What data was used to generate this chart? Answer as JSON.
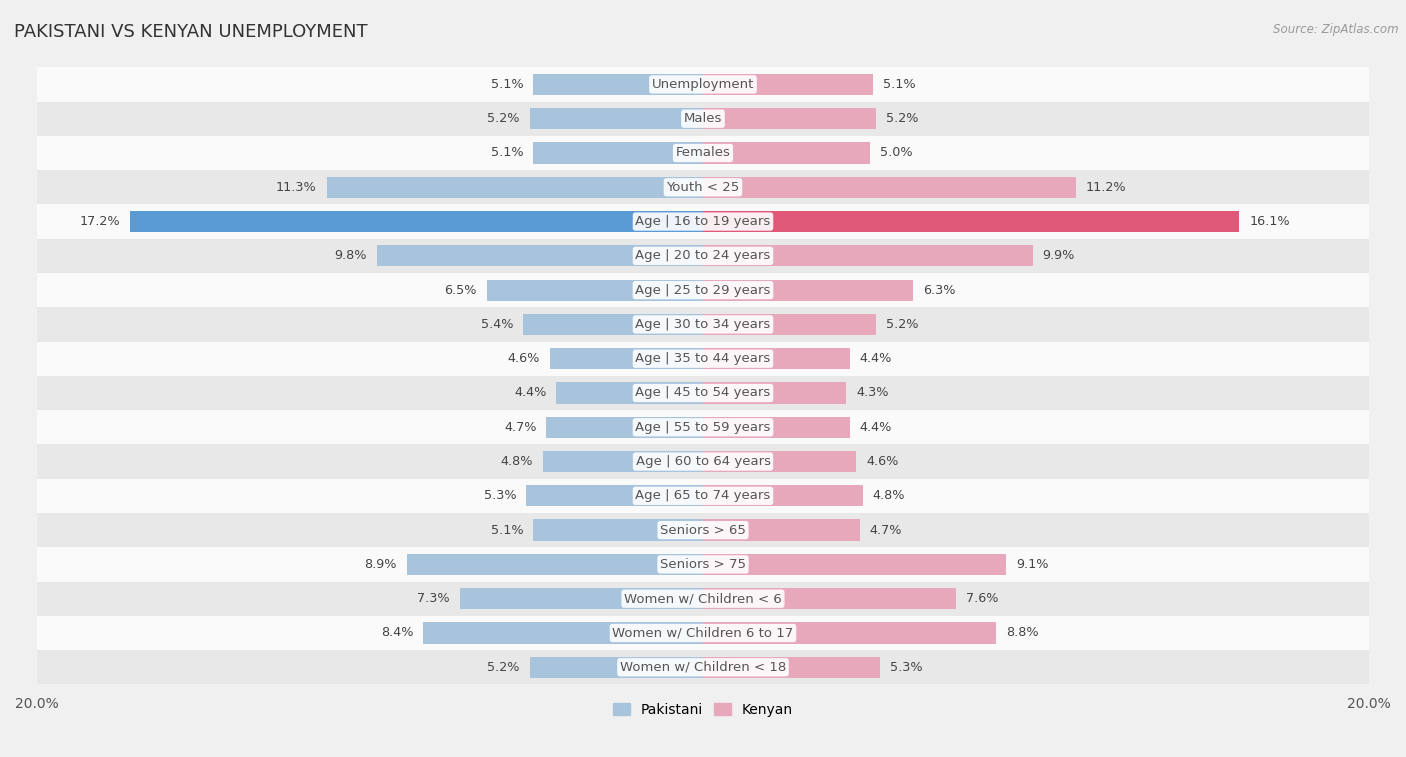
{
  "title": "PAKISTANI VS KENYAN UNEMPLOYMENT",
  "source": "Source: ZipAtlas.com",
  "categories": [
    "Unemployment",
    "Males",
    "Females",
    "Youth < 25",
    "Age | 16 to 19 years",
    "Age | 20 to 24 years",
    "Age | 25 to 29 years",
    "Age | 30 to 34 years",
    "Age | 35 to 44 years",
    "Age | 45 to 54 years",
    "Age | 55 to 59 years",
    "Age | 60 to 64 years",
    "Age | 65 to 74 years",
    "Seniors > 65",
    "Seniors > 75",
    "Women w/ Children < 6",
    "Women w/ Children 6 to 17",
    "Women w/ Children < 18"
  ],
  "pakistani": [
    5.1,
    5.2,
    5.1,
    11.3,
    17.2,
    9.8,
    6.5,
    5.4,
    4.6,
    4.4,
    4.7,
    4.8,
    5.3,
    5.1,
    8.9,
    7.3,
    8.4,
    5.2
  ],
  "kenyan": [
    5.1,
    5.2,
    5.0,
    11.2,
    16.1,
    9.9,
    6.3,
    5.2,
    4.4,
    4.3,
    4.4,
    4.6,
    4.8,
    4.7,
    9.1,
    7.6,
    8.8,
    5.3
  ],
  "pakistani_color": "#a8c4dd",
  "kenyan_color": "#e8a8bc",
  "pakistani_color_highlight": "#5b9bd5",
  "kenyan_color_highlight": "#e05878",
  "max_val": 20.0,
  "bar_height": 0.62,
  "bg_color": "#f0f0f0",
  "row_color_light": "#fafafa",
  "row_color_dark": "#e8e8e8",
  "label_fontsize": 9.5,
  "value_fontsize": 9.2,
  "title_fontsize": 13
}
